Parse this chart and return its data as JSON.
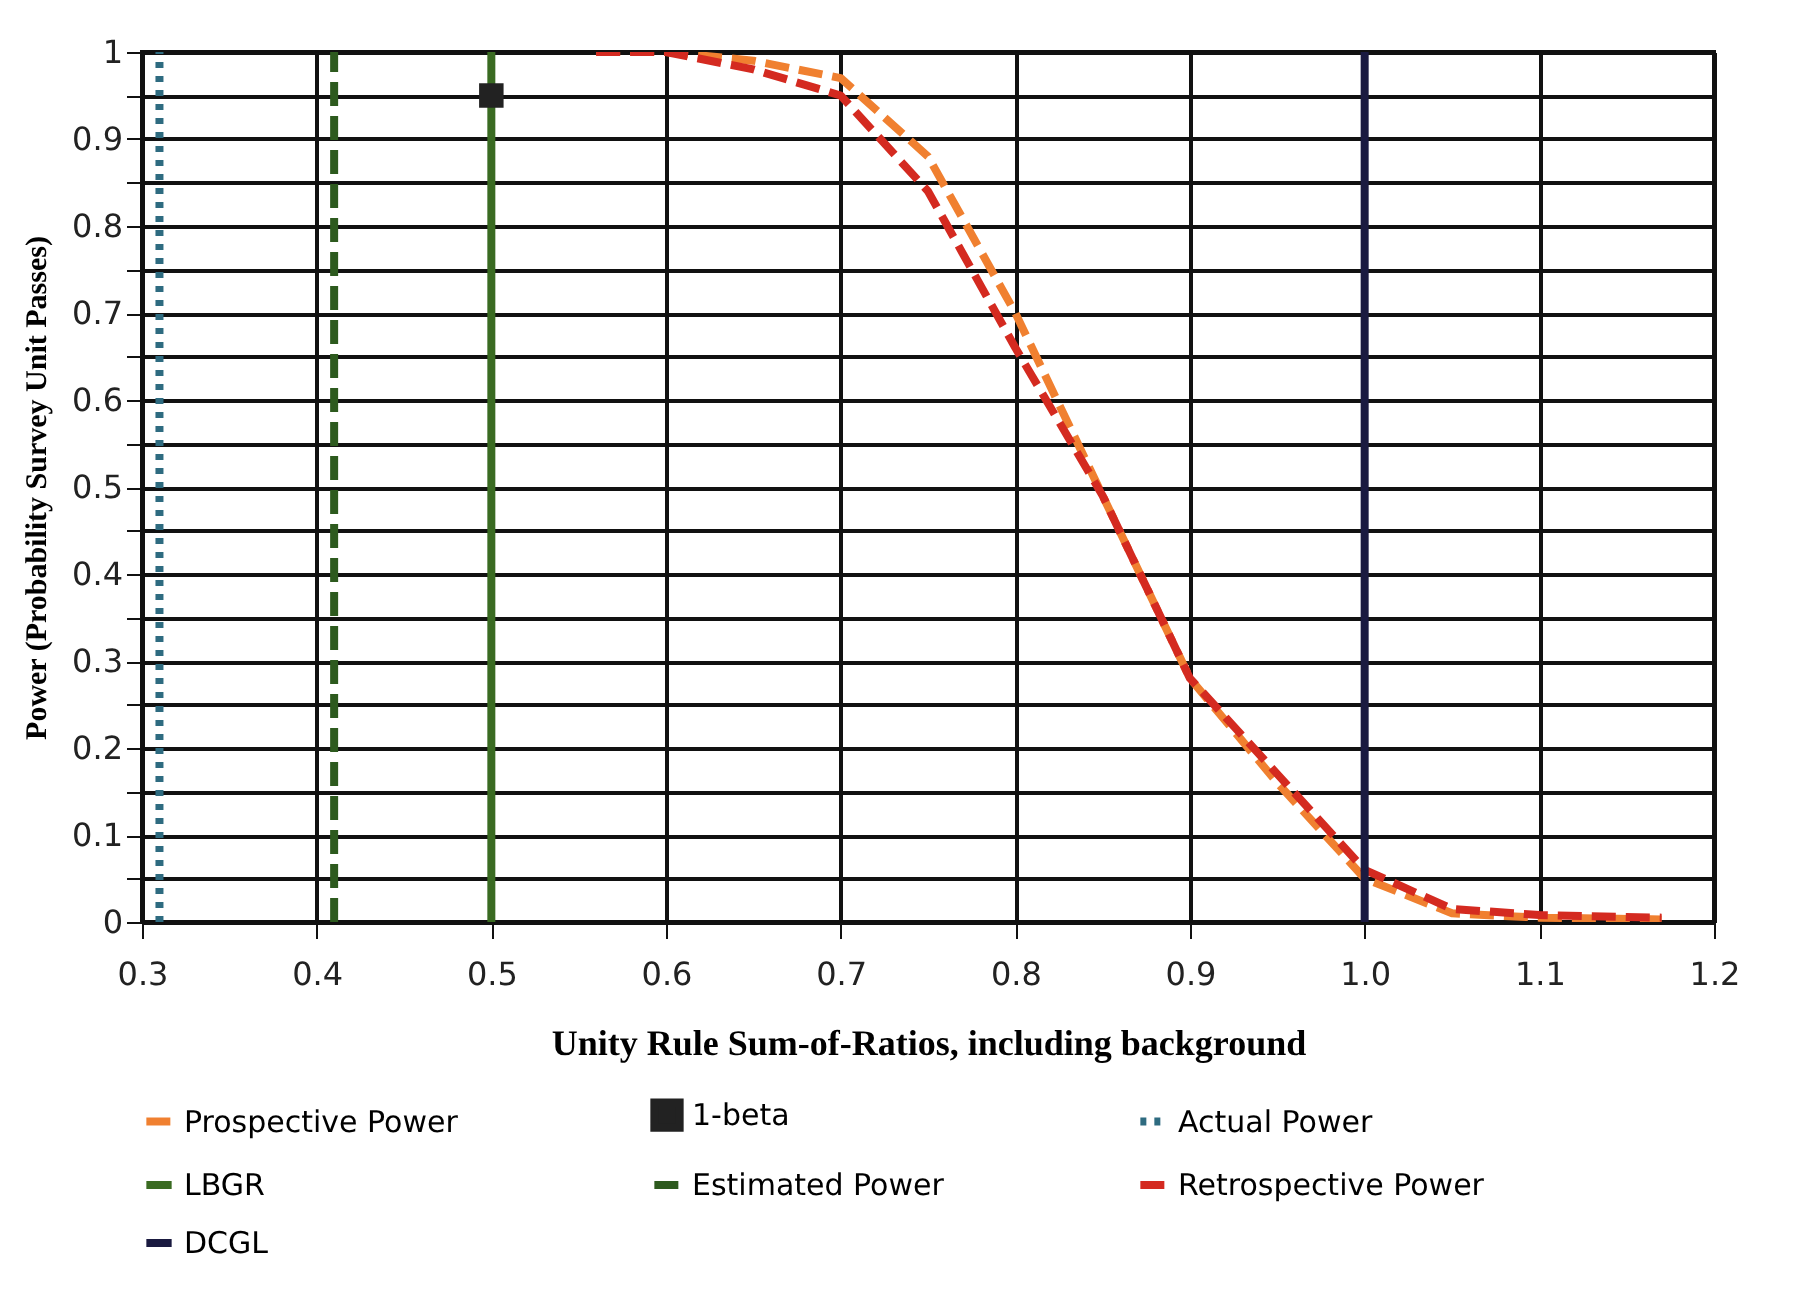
{
  "chart_data": {
    "type": "line",
    "xlabel": "Unity Rule Sum-of-Ratios, including background",
    "ylabel": "Power (Probability Survey Unit Passes)",
    "xlim": [
      0.3,
      1.2
    ],
    "xticks": [
      0.3,
      0.4,
      0.5,
      0.6,
      0.7,
      0.8,
      0.9,
      {
        "value": 1,
        "label": "1.0"
      },
      1.1,
      1.2
    ],
    "ylim": [
      0,
      1
    ],
    "yticks": [
      0,
      {
        "value": 0.05,
        "label": null
      },
      0.1,
      {
        "value": 0.15,
        "label": null
      },
      0.2,
      {
        "value": 0.25,
        "label": null
      },
      0.3,
      {
        "value": 0.35,
        "label": null
      },
      0.4,
      {
        "value": 0.45,
        "label": null
      },
      0.5,
      {
        "value": 0.55,
        "label": null
      },
      0.6,
      {
        "value": 0.65,
        "label": null
      },
      0.7,
      {
        "value": 0.75,
        "label": null
      },
      0.8,
      {
        "value": 0.85,
        "label": null
      },
      0.9,
      {
        "value": 0.95,
        "label": null
      },
      1
    ],
    "grid": true,
    "legend": "bottom",
    "series": [
      {
        "name": "Prospective Power",
        "color": "#f08030",
        "line_style": "dashed",
        "x": [
          0.56,
          0.6,
          0.65,
          0.7,
          0.75,
          0.8,
          0.85,
          0.9,
          0.95,
          1.0,
          1.05,
          1.1,
          1.17
        ],
        "values": [
          1,
          1,
          0.99,
          0.97,
          0.88,
          0.7,
          0.49,
          0.28,
          0.16,
          0.05,
          0.01,
          0.005,
          0.003
        ]
      },
      {
        "name": "1-beta",
        "type": "scatter",
        "color": "#222222",
        "marker": "square",
        "x": [
          0.5
        ],
        "values": [
          0.95
        ]
      },
      {
        "name": "Actual Power",
        "color": "#2e6b80",
        "line_style": "dotted",
        "x": [
          0.31,
          0.31
        ],
        "values": [
          0,
          1
        ]
      },
      {
        "name": "LBGR",
        "color": "#3a6b22",
        "line_style": "solid",
        "x": [
          0.5,
          0.5
        ],
        "values": [
          0,
          1
        ]
      },
      {
        "name": "Estimated Power",
        "color": "#2d5a1e",
        "line_style": "dashed",
        "x": [
          0.41,
          0.41
        ],
        "values": [
          0,
          1
        ]
      },
      {
        "name": "Retrospective Power",
        "color": "#d42a20",
        "line_style": "dashed",
        "x": [
          0.56,
          0.6,
          0.65,
          0.7,
          0.75,
          0.8,
          0.85,
          0.9,
          0.95,
          1.0,
          1.05,
          1.1,
          1.17
        ],
        "values": [
          1,
          1,
          0.98,
          0.95,
          0.84,
          0.66,
          0.49,
          0.28,
          0.17,
          0.06,
          0.015,
          0.008,
          0.005
        ]
      },
      {
        "name": "DCGL",
        "color": "#1a1a40",
        "line_style": "solid",
        "x": [
          1.0,
          1.0
        ],
        "values": [
          0,
          1
        ]
      }
    ]
  }
}
